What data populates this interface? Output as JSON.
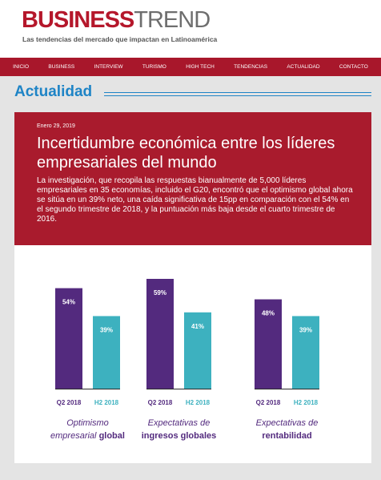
{
  "site": {
    "logo_part1": "BUSINESS",
    "logo_part2": "TREND",
    "tagline": "Las tendencias del mercado que impactan en Latinoamérica"
  },
  "nav": {
    "items": [
      "INICIO",
      "BUSINESS",
      "INTERVIEW",
      "TURISMO",
      "HIGH TECH",
      "TENDENCIAS",
      "ACTUALIDAD",
      "CONTACTO"
    ]
  },
  "section": {
    "title": "Actualidad"
  },
  "article": {
    "date": "Enero 29, 2019",
    "headline": "Incertidumbre económica entre los líderes empresariales del mundo",
    "body": "La investigación, que recopila las respuestas bianualmente de 5,000 líderes empresariales en 35 economías, incluido el G20, encontró que el optimismo global ahora se sitúa en un 39% neto, una caída significativa de 15pp en comparación con el 54% en el segundo trimestre de 2018, y la puntuación más baja desde el cuarto trimestre de 2016."
  },
  "colors": {
    "brand_red": "#a91b2d",
    "accent_blue": "#1e84c6",
    "bar_purple": "#532a7e",
    "bar_teal": "#3db1bf"
  },
  "chart_data": {
    "type": "bar",
    "groups": [
      {
        "caption_line1": "Optimismo",
        "caption_line2_prefix": "empresarial ",
        "caption_line2_bold": "global",
        "bars": [
          {
            "label": "Q2 2018",
            "value": 54,
            "value_label": "54%"
          },
          {
            "label": "H2 2018",
            "value": 39,
            "value_label": "39%"
          }
        ]
      },
      {
        "caption_line1": "Expectativas de",
        "caption_line2_prefix": "",
        "caption_line2_bold": "ingresos globales",
        "bars": [
          {
            "label": "Q2 2018",
            "value": 59,
            "value_label": "59%"
          },
          {
            "label": "H2 2018",
            "value": 41,
            "value_label": "41%"
          }
        ]
      },
      {
        "caption_line1": "Expectativas de",
        "caption_line2_prefix": "",
        "caption_line2_bold": "rentabilidad",
        "bars": [
          {
            "label": "Q2 2018",
            "value": 48,
            "value_label": "48%"
          },
          {
            "label": "H2 2018",
            "value": 39,
            "value_label": "39%"
          }
        ]
      }
    ],
    "ylim": [
      0,
      59
    ]
  }
}
